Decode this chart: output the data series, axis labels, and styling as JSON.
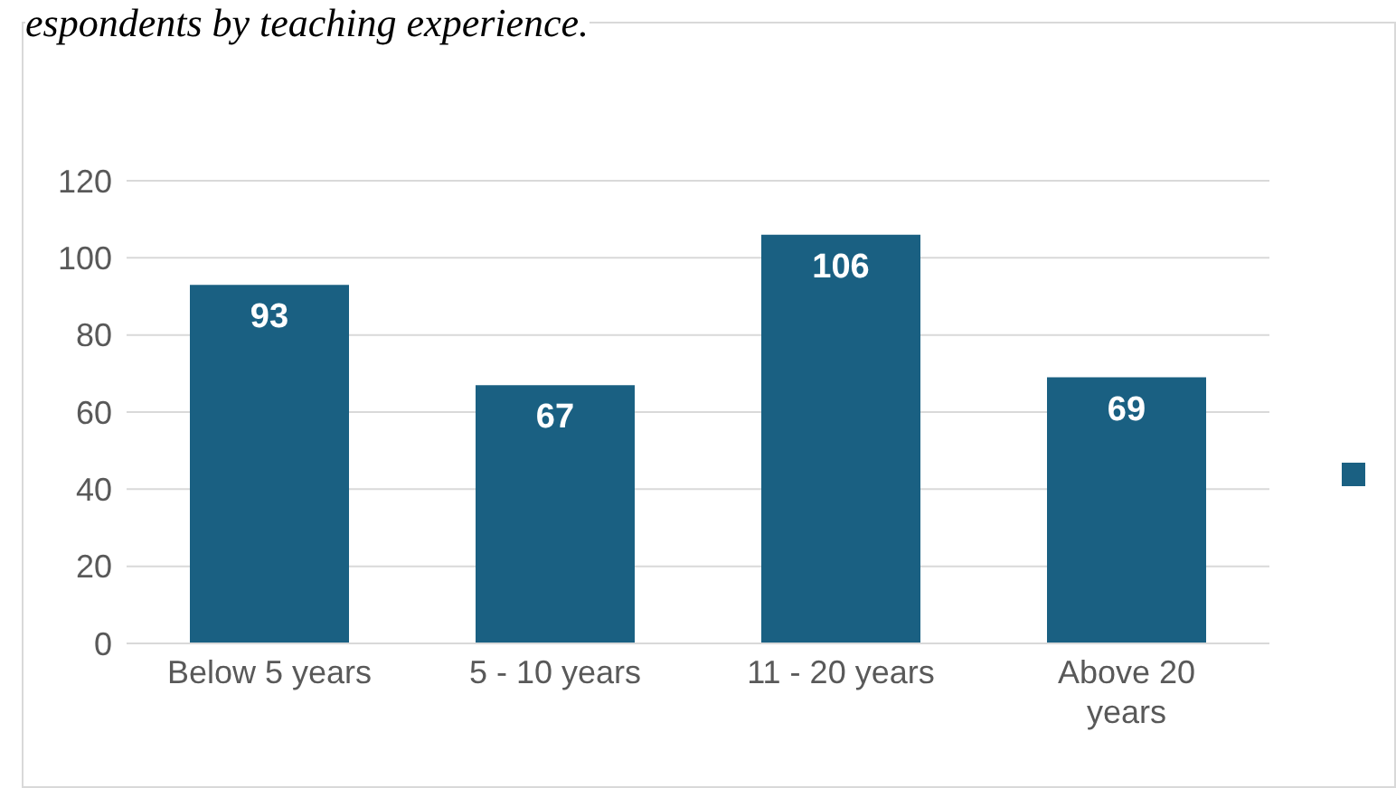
{
  "chart_data": {
    "type": "bar",
    "title": "espondents by teaching experience.",
    "categories": [
      "Below 5 years",
      "5 - 10 years",
      "11 - 20 years",
      "Above 20 years"
    ],
    "series": [
      {
        "color": "#1a6082",
        "values": [
          93,
          67,
          106,
          69
        ]
      }
    ],
    "ylim": [
      0,
      120
    ],
    "yticks": [
      0,
      20,
      40,
      60,
      80,
      100,
      120
    ],
    "grid": "y",
    "data_labels": true
  }
}
